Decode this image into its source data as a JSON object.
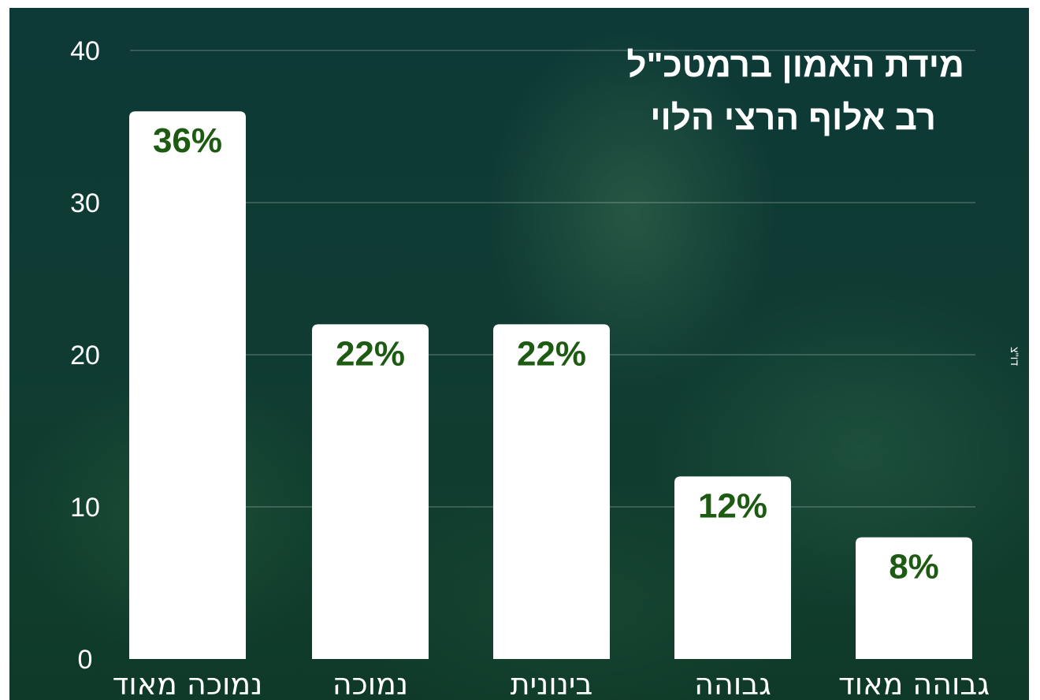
{
  "chart_data": {
    "type": "bar",
    "title": "מידת האמון ברמטכ\"ל",
    "subtitle": "רב אלוף הרצי הלוי",
    "categories": [
      "נמוכה מאוד",
      "נמוכה",
      "בינונית",
      "גבוהה",
      "גבוהה מאוד"
    ],
    "values": [
      36,
      22,
      22,
      12,
      8
    ],
    "value_labels": [
      "36%",
      "22%",
      "22%",
      "12%",
      "8%"
    ],
    "yticks": [
      "0",
      "10",
      "20",
      "30",
      "40"
    ],
    "ylim": [
      0,
      40
    ],
    "grid": true,
    "bar_color": "#ffffff",
    "label_color": "#1d5a12"
  },
  "credit": "דו\"צ"
}
